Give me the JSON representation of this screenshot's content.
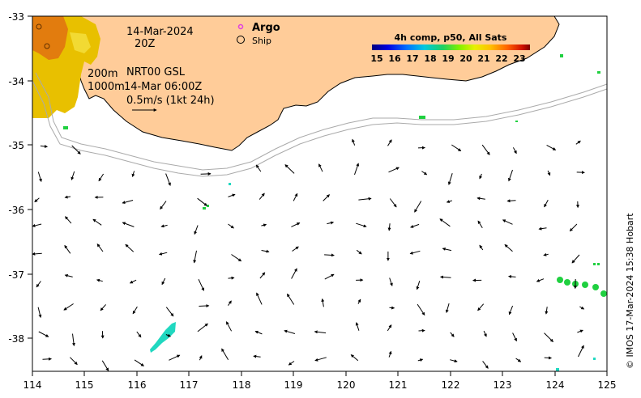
{
  "date_line": "14-Mar-2024",
  "hour_line": "20Z",
  "legend": {
    "argo_label": "Argo",
    "ship_label": "Ship",
    "argo_color": "#e040e0"
  },
  "depth_info": {
    "line1_depth": "200m",
    "line1_product": "NRT00 GSL",
    "line2_depth": "1000m",
    "line2_time": "14-Mar 06:00Z",
    "scale_label": "0.5m/s (1kt 24h)"
  },
  "colorbar": {
    "title": "4h comp, p50, All Sats",
    "ticks": [
      "15",
      "16",
      "17",
      "18",
      "19",
      "20",
      "21",
      "22",
      "23"
    ],
    "colors": [
      "#00007f",
      "#0000d4",
      "#0050ff",
      "#00a8ff",
      "#10e0c8",
      "#40e040",
      "#90f000",
      "#e0f000",
      "#ffd000",
      "#ff9000",
      "#ff5000",
      "#e01000",
      "#800000"
    ]
  },
  "axes": {
    "x_ticks": [
      "114",
      "115",
      "116",
      "117",
      "118",
      "119",
      "120",
      "121",
      "122",
      "123",
      "124",
      "125"
    ],
    "y_ticks": [
      "-33",
      "-34",
      "-35",
      "-36",
      "-37",
      "-38"
    ],
    "lon_range": [
      114,
      125
    ],
    "lat_range": [
      -38.5,
      -33
    ]
  },
  "credit": "© IMOS 17-Mar-2024 15:38 Hobart",
  "colors": {
    "land": "#ffcc99",
    "coast": "#000000",
    "isobath": "#aaaaaa",
    "sst_warm": "#e8c000",
    "sst_green": "#20d040",
    "sst_cyan": "#20d8c0"
  }
}
